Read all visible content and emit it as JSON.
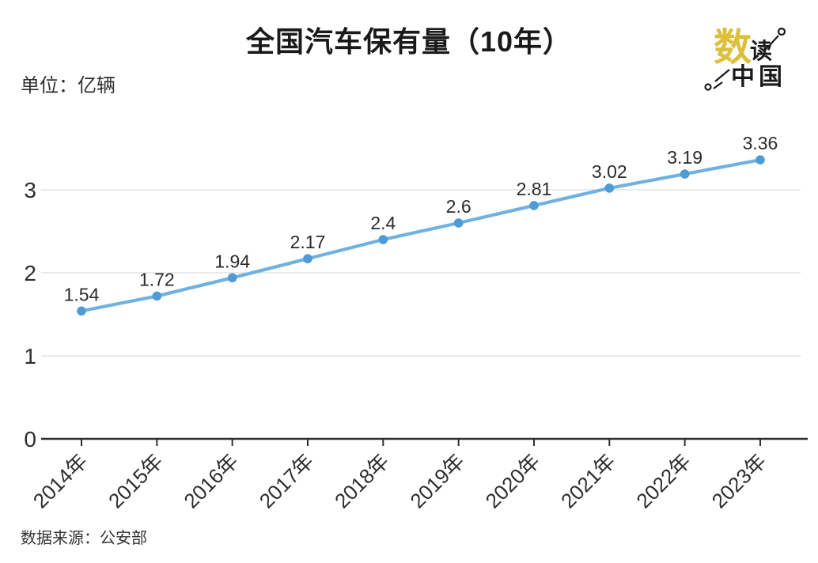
{
  "header": {
    "title": "全国汽车保有量（10年）",
    "unit_label": "单位：亿辆"
  },
  "logo": {
    "char1": "数",
    "char2": "读",
    "bottom": "中国",
    "gold": "#ddbf3a",
    "ink": "#1a1a1a"
  },
  "footer": {
    "source": "数据来源：公安部"
  },
  "chart_data": {
    "type": "line",
    "title": "全国汽车保有量（10年）",
    "unit": "亿辆",
    "categories": [
      "2014年",
      "2015年",
      "2016年",
      "2017年",
      "2018年",
      "2019年",
      "2020年",
      "2021年",
      "2022年",
      "2023年"
    ],
    "values": [
      1.54,
      1.72,
      1.94,
      2.17,
      2.4,
      2.6,
      2.81,
      3.02,
      3.19,
      3.36
    ],
    "ylim": [
      0,
      3.5
    ],
    "yticks": [
      0,
      1,
      2,
      3
    ],
    "grid": true,
    "legend": "none",
    "line_color": "#6fb2e1",
    "point_color": "#4e9bd6",
    "grid_color": "#dddddd",
    "axis_color": "#2f2f2f",
    "source": "数据来源：公安部"
  }
}
